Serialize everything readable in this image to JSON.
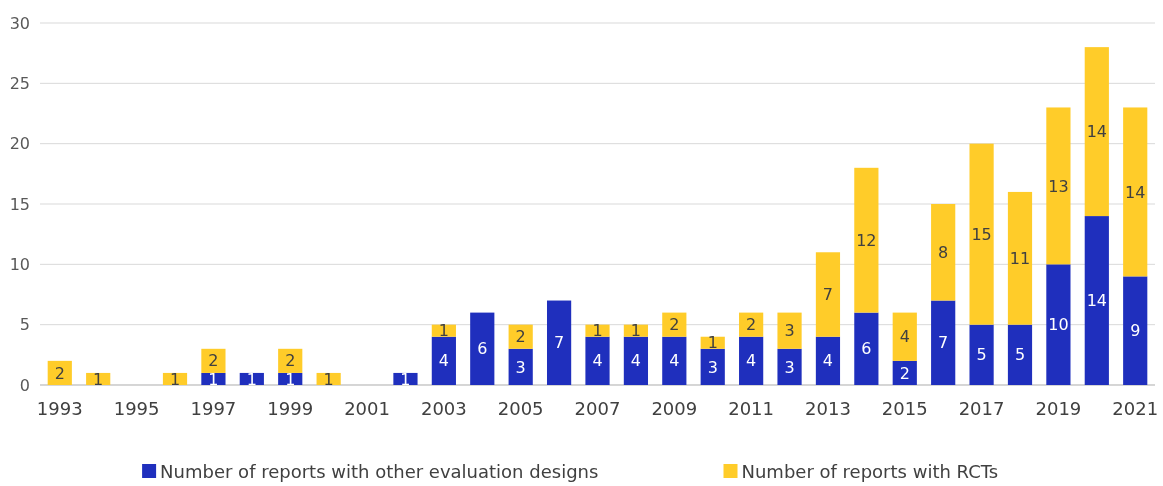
{
  "chart_data": {
    "type": "bar",
    "stacked": true,
    "categories": [
      "1993",
      null,
      "1995",
      null,
      "1997",
      null,
      "1999",
      null,
      "2001",
      null,
      "2003",
      null,
      "2005",
      null,
      "2007",
      null,
      "2009",
      null,
      "2011",
      null,
      "2013",
      null,
      "2015",
      null,
      "2017",
      null,
      "2019",
      null,
      "2021"
    ],
    "series": [
      {
        "name": "Number of reports with other evaluation designs",
        "color": "#1f2fbd",
        "values": [
          0,
          0,
          0,
          0,
          1,
          1,
          1,
          0,
          0,
          1,
          4,
          6,
          3,
          7,
          4,
          4,
          4,
          3,
          4,
          3,
          4,
          6,
          2,
          7,
          5,
          5,
          10,
          14,
          9
        ],
        "value_labels": [
          null,
          null,
          null,
          null,
          "1",
          "1",
          "1",
          null,
          null,
          "1",
          "4",
          "6",
          "3",
          "7",
          "4",
          "4",
          "4",
          "3",
          "4",
          "3",
          "4",
          "6",
          "2",
          "7",
          "5",
          "5",
          "10",
          "14",
          "9"
        ]
      },
      {
        "name": "Number of reports with RCTs",
        "color": "#ffcc29",
        "values": [
          2,
          1,
          0,
          1,
          2,
          0,
          2,
          1,
          0,
          0,
          1,
          0,
          2,
          0,
          1,
          1,
          2,
          1,
          2,
          3,
          7,
          12,
          4,
          8,
          15,
          11,
          13,
          14,
          14
        ],
        "value_labels": [
          "2",
          "1",
          null,
          "1",
          "2",
          null,
          "2",
          "1",
          null,
          null,
          "1",
          null,
          "2",
          null,
          "1",
          "1",
          "2",
          "1",
          "2",
          "3",
          "7",
          "12",
          "4",
          "8",
          "15",
          "11",
          "13",
          "14",
          "14"
        ]
      }
    ],
    "ylim": [
      0,
      30
    ],
    "yticks": [
      0,
      5,
      10,
      15,
      20,
      25,
      30
    ],
    "grid": "y",
    "legend": "bottom"
  }
}
